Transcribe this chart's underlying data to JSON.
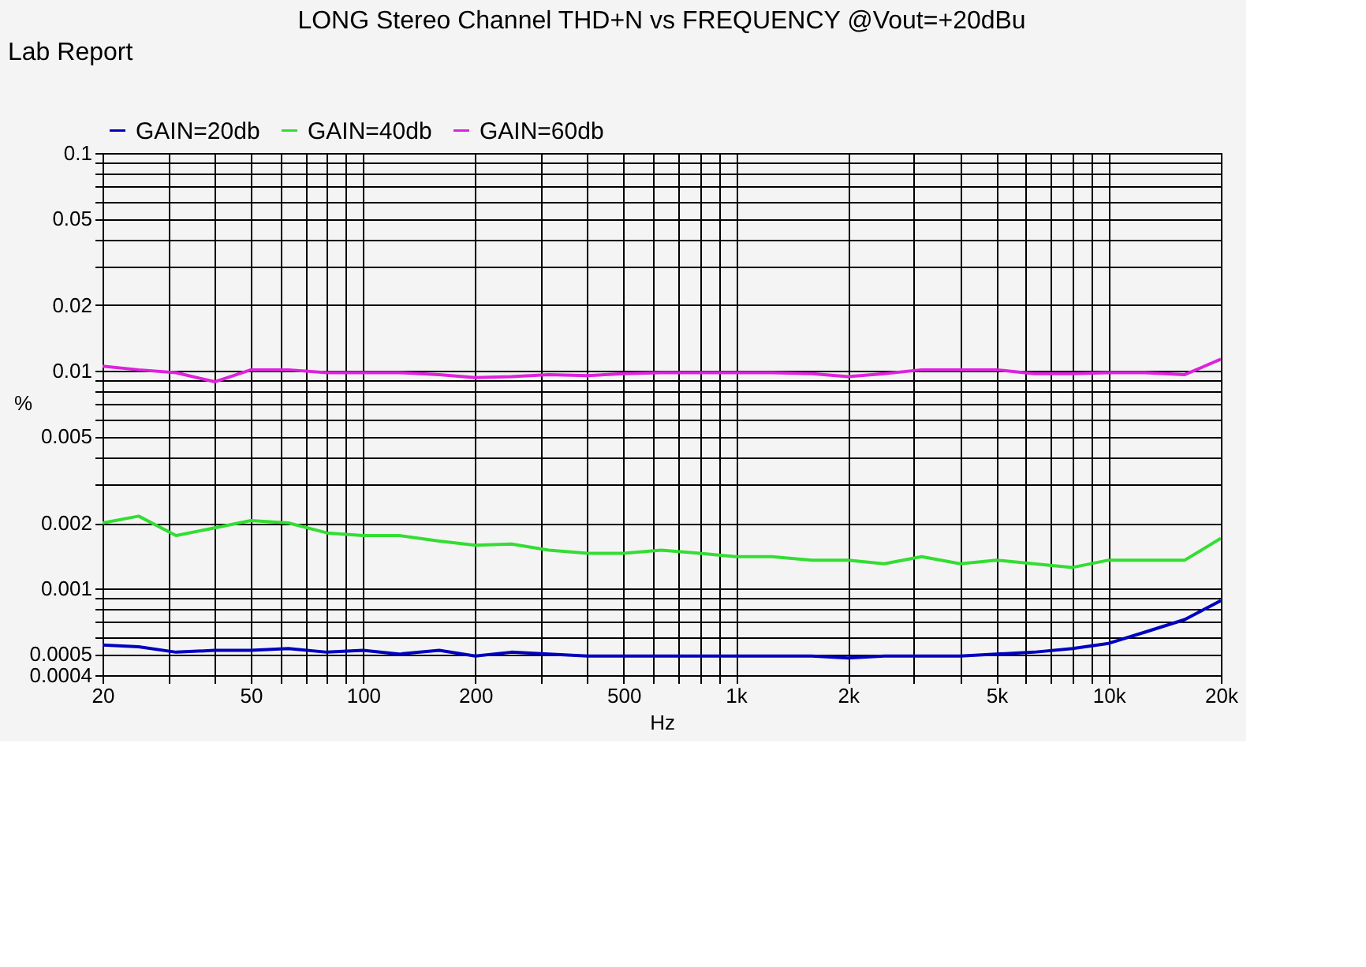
{
  "chart_data": {
    "type": "line",
    "title": "LONG Stereo Channel THD+N vs FREQUENCY @Vout=+20dBu",
    "annotations": [
      "Lab Report"
    ],
    "xlabel": "Hz",
    "ylabel": "%",
    "log": "xy",
    "grid": true,
    "legend": "top",
    "marker": "none",
    "line_style": "solid",
    "x": [
      20,
      25,
      31.5,
      40,
      50,
      63,
      80,
      100,
      125,
      160,
      200,
      250,
      315,
      400,
      500,
      630,
      800,
      1000,
      1250,
      1600,
      2000,
      2500,
      3150,
      4000,
      5000,
      6300,
      8000,
      10000,
      12500,
      16000,
      20000
    ],
    "series": [
      {
        "name": "GAIN=20db",
        "color": "#0000c0",
        "values": [
          0.00055,
          0.00054,
          0.00051,
          0.00052,
          0.00052,
          0.00053,
          0.00051,
          0.00052,
          0.0005,
          0.00052,
          0.00049,
          0.00051,
          0.0005,
          0.00049,
          0.00049,
          0.00049,
          0.00049,
          0.00049,
          0.00049,
          0.00049,
          0.00048,
          0.00049,
          0.00049,
          0.00049,
          0.0005,
          0.00051,
          0.00053,
          0.00056,
          0.00063,
          0.00072,
          0.00088
        ]
      },
      {
        "name": "GAIN=40db",
        "color": "#33dd33",
        "values": [
          0.002,
          0.00215,
          0.00175,
          0.0019,
          0.00205,
          0.002,
          0.0018,
          0.00175,
          0.00175,
          0.00165,
          0.00158,
          0.0016,
          0.0015,
          0.00145,
          0.00145,
          0.0015,
          0.00145,
          0.0014,
          0.0014,
          0.00135,
          0.00135,
          0.0013,
          0.0014,
          0.0013,
          0.00135,
          0.0013,
          0.00125,
          0.00135,
          0.00135,
          0.00135,
          0.0017
        ]
      },
      {
        "name": "GAIN=60db",
        "color": "#dd22dd",
        "values": [
          0.0105,
          0.0101,
          0.0098,
          0.0089,
          0.0101,
          0.0101,
          0.0098,
          0.0098,
          0.0098,
          0.0096,
          0.0093,
          0.0094,
          0.0096,
          0.0095,
          0.0097,
          0.0098,
          0.0098,
          0.0098,
          0.0098,
          0.0097,
          0.0094,
          0.0097,
          0.0101,
          0.0101,
          0.0101,
          0.0097,
          0.0097,
          0.0098,
          0.0098,
          0.0096,
          0.0113
        ]
      }
    ],
    "xlim": [
      20,
      20000
    ],
    "ylim": [
      0.0004,
      0.1
    ],
    "xticks": [
      20,
      {
        "value": 30,
        "label": null
      },
      {
        "value": 40,
        "label": null
      },
      50,
      {
        "value": 60,
        "label": null
      },
      {
        "value": 70,
        "label": null
      },
      {
        "value": 80,
        "label": null
      },
      {
        "value": 90,
        "label": null
      },
      100,
      200,
      {
        "value": 300,
        "label": null
      },
      {
        "value": 400,
        "label": null
      },
      500,
      {
        "value": 600,
        "label": null
      },
      {
        "value": 700,
        "label": null
      },
      {
        "value": 800,
        "label": null
      },
      {
        "value": 900,
        "label": null
      },
      {
        "value": 1000,
        "label": "1k"
      },
      {
        "value": 2000,
        "label": "2k"
      },
      {
        "value": 3000,
        "label": null
      },
      {
        "value": 4000,
        "label": null
      },
      {
        "value": 5000,
        "label": "5k"
      },
      {
        "value": 6000,
        "label": null
      },
      {
        "value": 7000,
        "label": null
      },
      {
        "value": 8000,
        "label": null
      },
      {
        "value": 9000,
        "label": null
      },
      {
        "value": 10000,
        "label": "10k"
      },
      {
        "value": 20000,
        "label": "20k"
      }
    ],
    "yticks": [
      0.0004,
      0.0005,
      {
        "value": 0.0006,
        "label": null
      },
      {
        "value": 0.0007,
        "label": null
      },
      {
        "value": 0.0008,
        "label": null
      },
      {
        "value": 0.0009,
        "label": null
      },
      0.001,
      0.002,
      {
        "value": 0.003,
        "label": null
      },
      {
        "value": 0.004,
        "label": null
      },
      0.005,
      {
        "value": 0.006,
        "label": null
      },
      {
        "value": 0.007,
        "label": null
      },
      {
        "value": 0.008,
        "label": null
      },
      {
        "value": 0.009,
        "label": null
      },
      0.01,
      0.02,
      {
        "value": 0.03,
        "label": null
      },
      {
        "value": 0.04,
        "label": null
      },
      0.05,
      {
        "value": 0.06,
        "label": null
      },
      {
        "value": 0.07,
        "label": null
      },
      {
        "value": 0.08,
        "label": null
      },
      {
        "value": 0.09,
        "label": null
      },
      0.1
    ]
  }
}
